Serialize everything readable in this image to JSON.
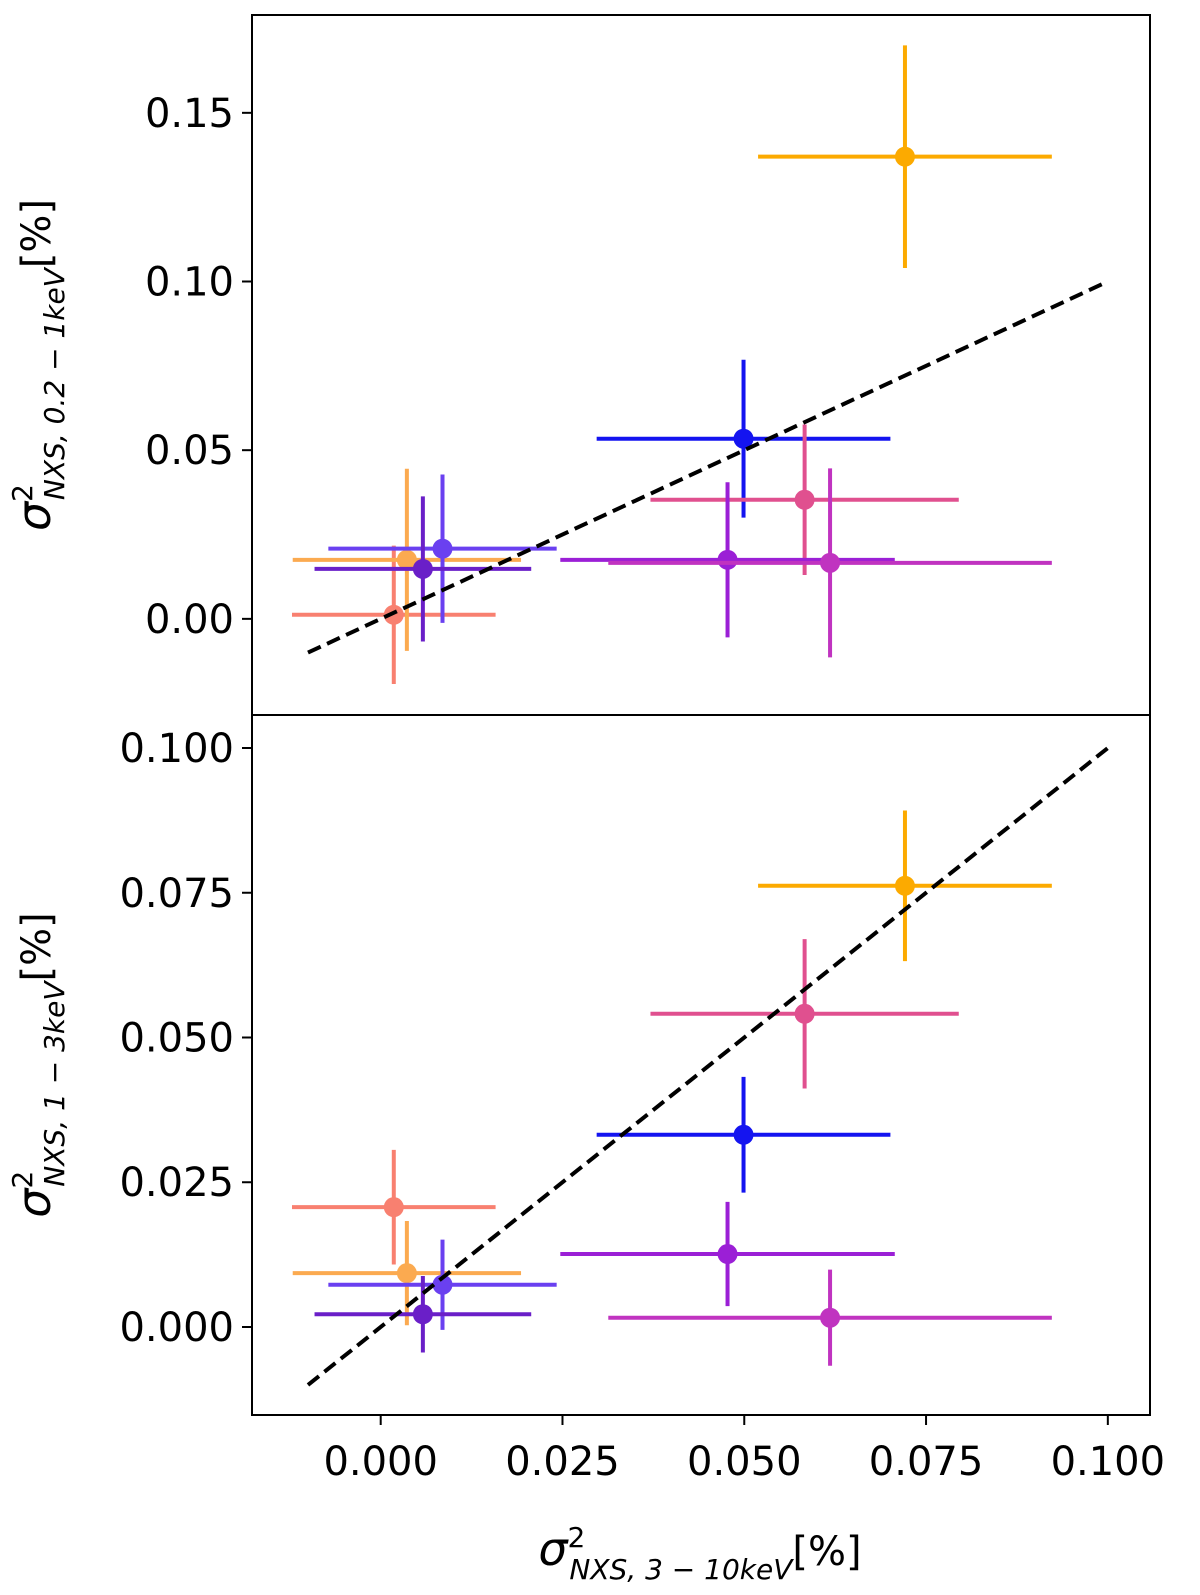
{
  "chart_data": [
    {
      "type": "scatter",
      "ylabel": {
        "symbol": "σ",
        "sup": "2",
        "sub": "NXS, 0.2 − 1keV",
        "unit": "[%]"
      },
      "xlim": [
        -0.0177,
        0.1058
      ],
      "ylim": [
        -0.0285,
        0.179
      ],
      "yticks": [
        {
          "value": 0,
          "label": "0.00"
        },
        {
          "value": 0.05,
          "label": "0.05"
        },
        {
          "value": 0.1,
          "label": "0.10"
        },
        {
          "value": 0.15,
          "label": "0.15"
        }
      ],
      "colors": [
        "#fcaa00",
        "#1414f0",
        "#e0508f",
        "#9b1fd6",
        "#c033c0",
        "#f88070",
        "#fbaa50",
        "#6a40f0",
        "#6a1fc8"
      ],
      "x": [
        0.0721,
        0.0499,
        0.0583,
        0.0477,
        0.0618,
        0.0018,
        0.0036,
        0.0085,
        0.0058
      ],
      "xerr": [
        0.0202,
        0.0202,
        0.0212,
        0.023,
        0.0305,
        0.014,
        0.0157,
        0.0157,
        0.0149
      ],
      "y": [
        0.137,
        0.0534,
        0.0353,
        0.0175,
        0.0166,
        0.0012,
        0.0175,
        0.0208,
        0.0148
      ],
      "yerr": [
        0.033,
        0.0234,
        0.0223,
        0.023,
        0.028,
        0.0205,
        0.027,
        0.022,
        0.0215
      ],
      "line": {
        "x": [
          -0.01,
          0.1
        ],
        "y": [
          -0.01,
          0.1
        ],
        "color": "#000000",
        "style": "dashed"
      }
    },
    {
      "type": "scatter",
      "ylabel": {
        "symbol": "σ",
        "sup": "2",
        "sub": "NXS, 1 − 3keV",
        "unit": "[%]"
      },
      "xlabel": {
        "symbol": "σ",
        "sup": "2",
        "sub": "NXS, 3 − 10keV",
        "unit": "[%]"
      },
      "xlim": [
        -0.0177,
        0.1058
      ],
      "ylim": [
        -0.0152,
        0.1057
      ],
      "xticks": [
        {
          "value": 0,
          "label": "0.000"
        },
        {
          "value": 0.025,
          "label": "0.025"
        },
        {
          "value": 0.05,
          "label": "0.050"
        },
        {
          "value": 0.075,
          "label": "0.075"
        },
        {
          "value": 0.1,
          "label": "0.100"
        }
      ],
      "yticks": [
        {
          "value": 0,
          "label": "0.000"
        },
        {
          "value": 0.025,
          "label": "0.025"
        },
        {
          "value": 0.05,
          "label": "0.050"
        },
        {
          "value": 0.075,
          "label": "0.075"
        },
        {
          "value": 0.1,
          "label": "0.100"
        }
      ],
      "colors": [
        "#fcaa00",
        "#1414f0",
        "#e0508f",
        "#9b1fd6",
        "#c033c0",
        "#f88070",
        "#fbaa50",
        "#6a40f0",
        "#6a1fc8"
      ],
      "x": [
        0.0721,
        0.0499,
        0.0583,
        0.0477,
        0.0618,
        0.0018,
        0.0036,
        0.0085,
        0.0058
      ],
      "xerr": [
        0.0202,
        0.0202,
        0.0212,
        0.023,
        0.0305,
        0.014,
        0.0157,
        0.0157,
        0.0149
      ],
      "y": [
        0.0762,
        0.0332,
        0.0541,
        0.0126,
        0.0016,
        0.0207,
        0.0093,
        0.0073,
        0.0022
      ],
      "yerr": [
        0.013,
        0.01,
        0.0129,
        0.009,
        0.0083,
        0.0099,
        0.009,
        0.0078,
        0.0066
      ],
      "line": {
        "x": [
          -0.01,
          0.1
        ],
        "y": [
          -0.01,
          0.1
        ],
        "color": "#000000",
        "style": "dashed"
      }
    }
  ]
}
